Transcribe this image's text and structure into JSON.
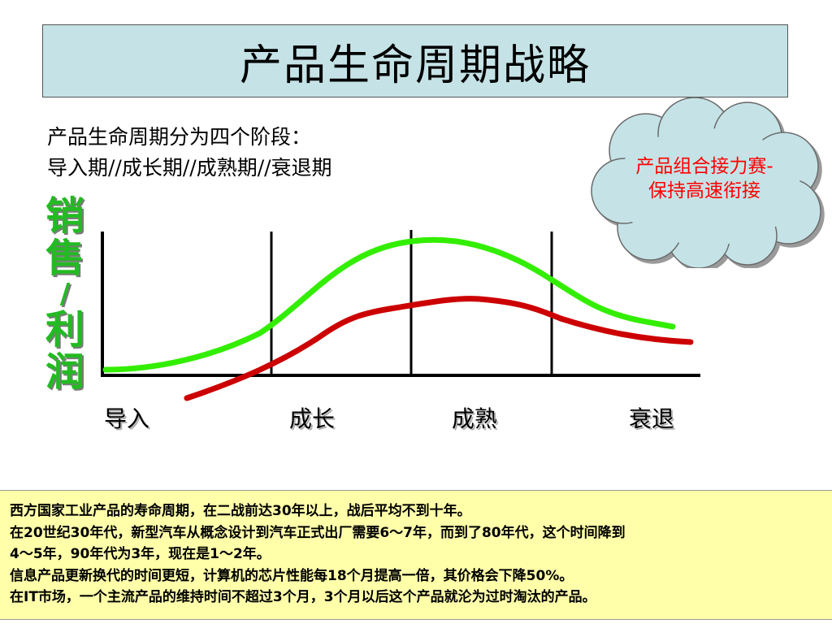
{
  "title": "产品生命周期战略",
  "intro": {
    "line1": "产品生命周期分为四个阶段：",
    "line2": "导入期//成长期//成熟期//衰退期"
  },
  "callout": {
    "line1": "产品组合接力赛-",
    "line2": "保持高速衔接",
    "text_color": "#ff0000",
    "fill_color": "#c5e3e6"
  },
  "y_axis_label": [
    "销",
    "售",
    "/",
    "利",
    "润"
  ],
  "stages": [
    "导入",
    "成长",
    "成熟",
    "衰退"
  ],
  "curves": {
    "sales_color": "#33ee00",
    "profit_color": "#cc0000"
  },
  "notes": [
    "西方国家工业产品的寿命周期，在二战前达30年以上，战后平均不到十年。",
    "在20世纪30年代，新型汽车从概念设计到汽车正式出厂需要6～7年，而到了80年代，这个时间降到",
    "4～5年，90年代为3年，现在是1～2年。",
    "信息产品更新换代的时间更短，计算机的芯片性能每18个月提高一倍，其价格会下降50%。",
    "在IT市场，一个主流产品的维持时间不超过3个月，3个月以后这个产品就沦为过时淘汰的产品。"
  ]
}
